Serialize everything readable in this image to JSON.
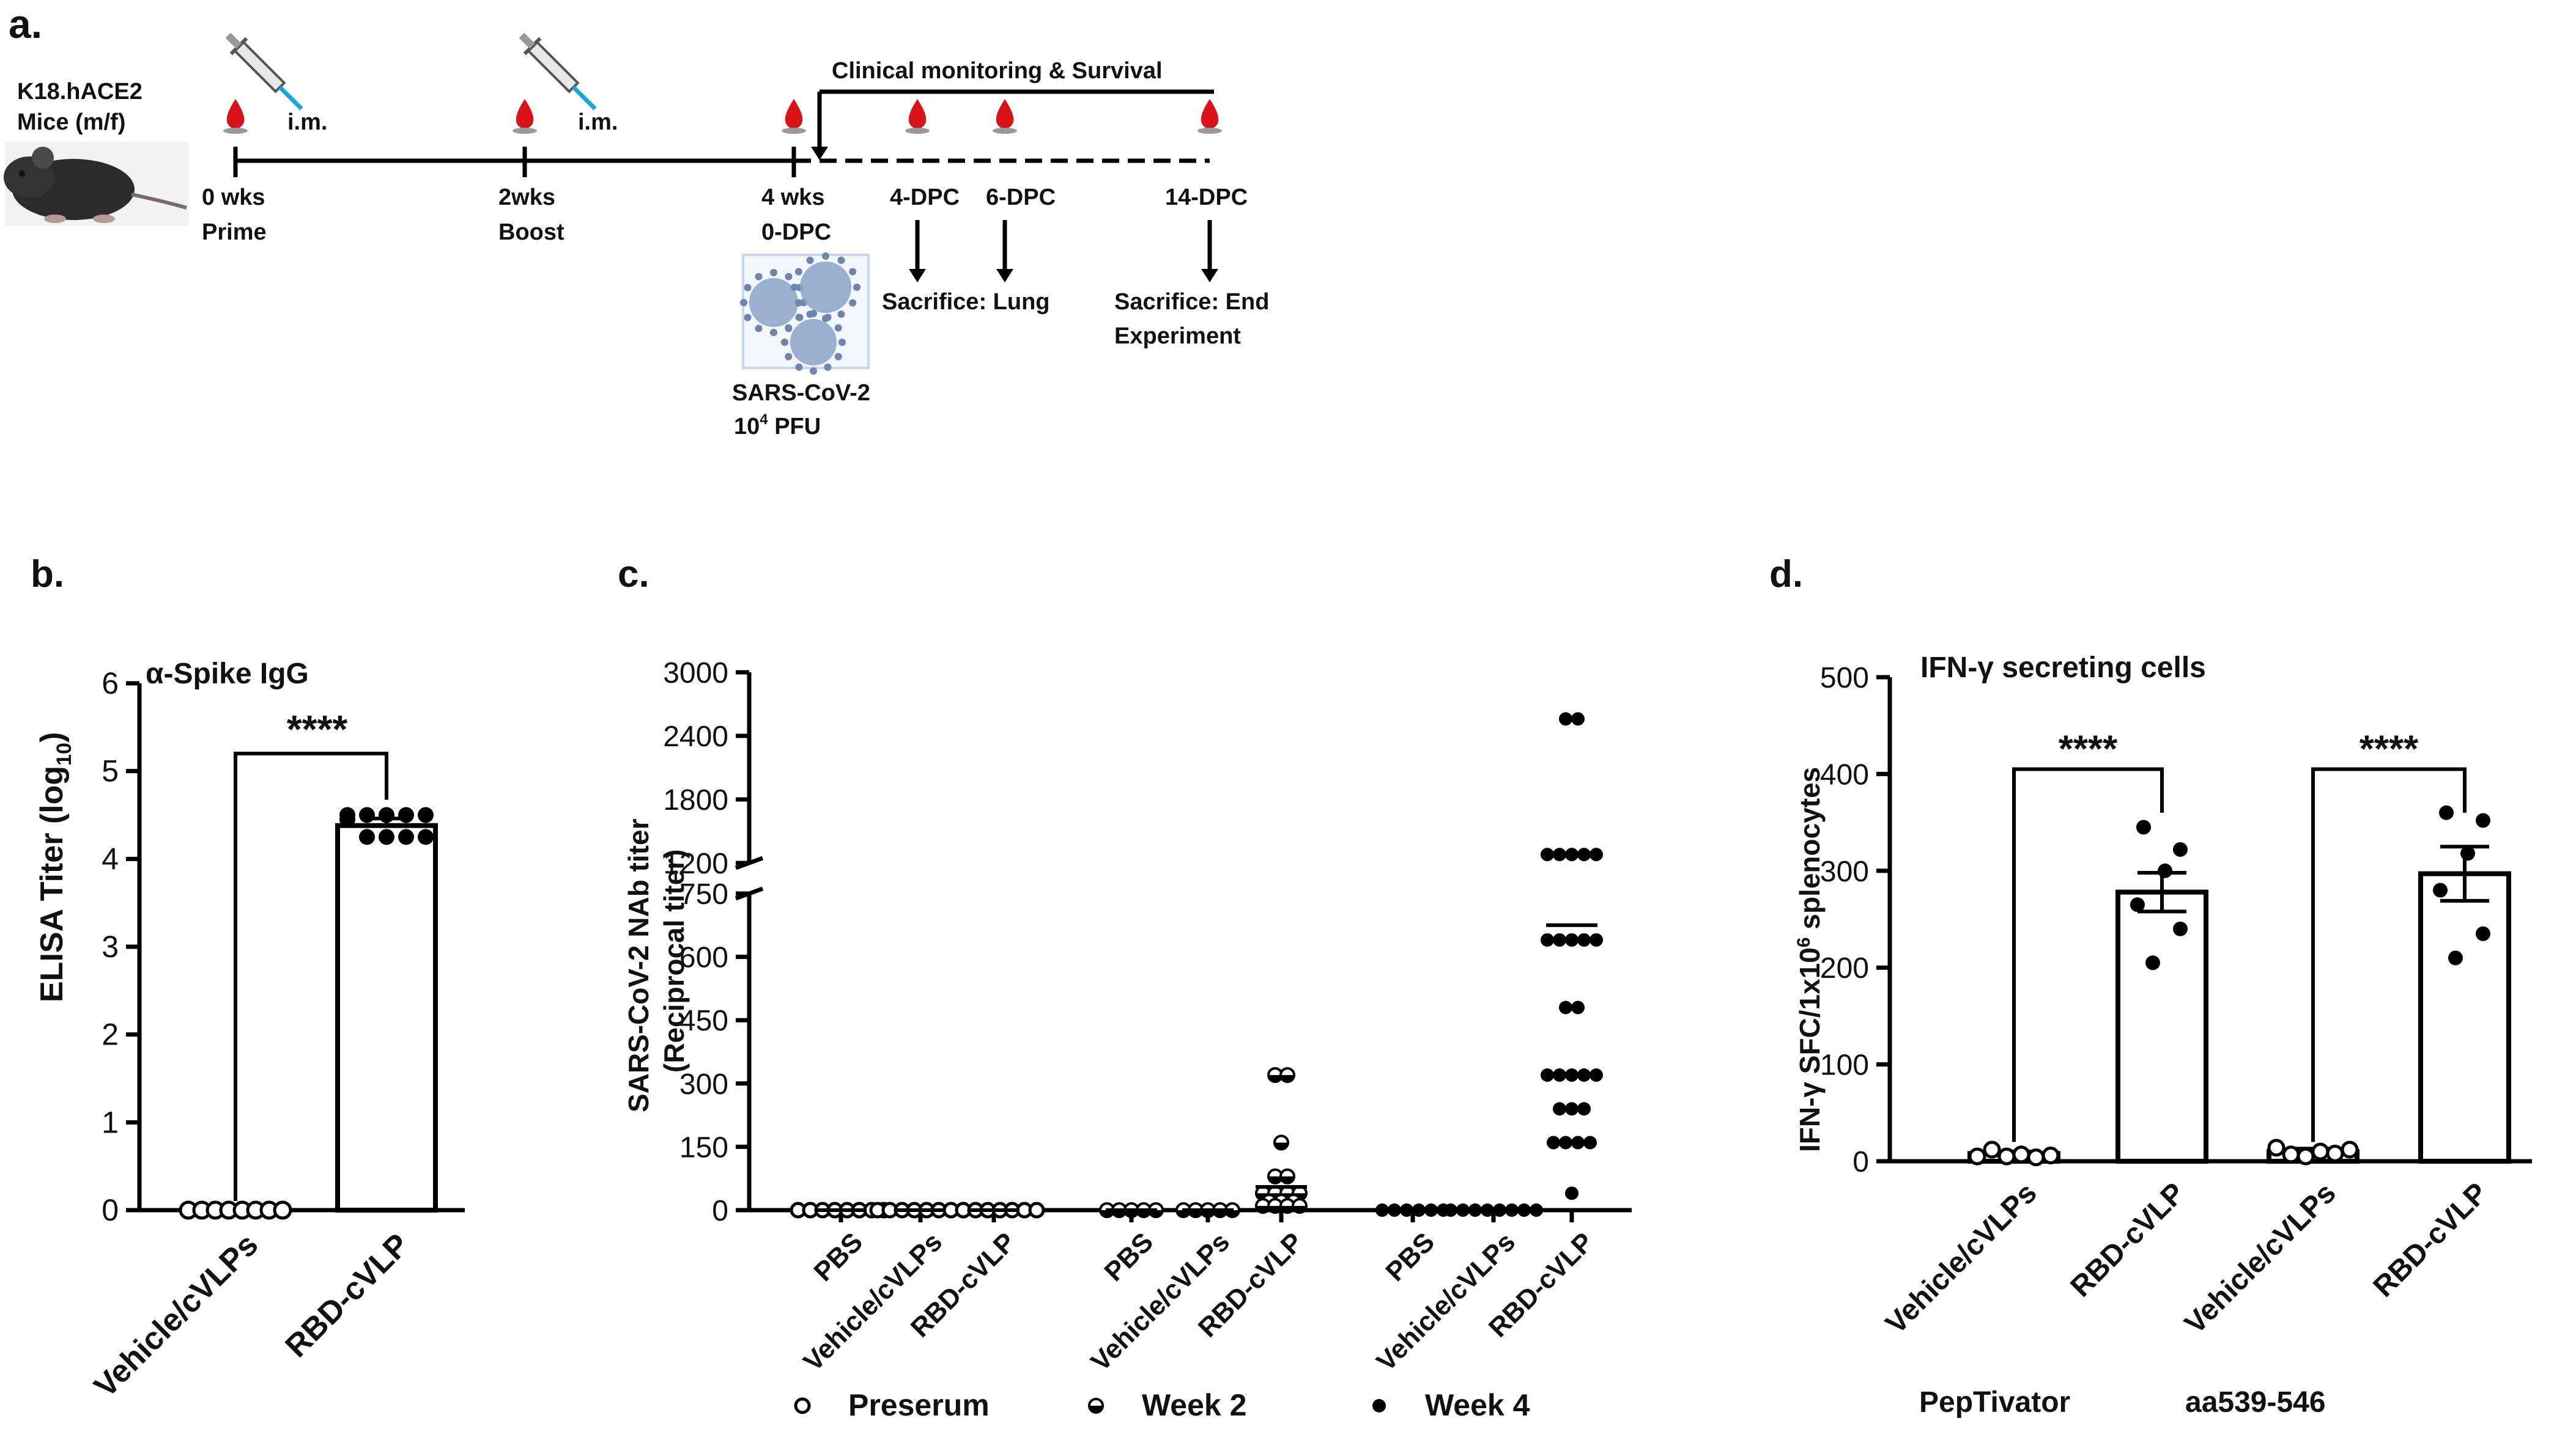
{
  "colors": {
    "ink": "#000000",
    "blood": "#d81418",
    "syringe_needle": "#1aa6d9",
    "virus": "#8aa3c8",
    "virus_box": "#c6d7ee"
  },
  "panel_a": {
    "label": "a.",
    "mouse_label": [
      "K18.hACE2",
      "Mice (m/f)"
    ],
    "route": "i.m.",
    "timepoints": [
      {
        "line1": "0 wks",
        "line2": "Prime"
      },
      {
        "line1": "2wks",
        "line2": "Boost"
      },
      {
        "line1": "4 wks",
        "line2": "0-DPC"
      },
      {
        "line1": "4-DPC",
        "line2": ""
      },
      {
        "line1": "6-DPC",
        "line2": ""
      },
      {
        "line1": "14-DPC",
        "line2": ""
      }
    ],
    "monitoring": "Clinical monitoring & Survival",
    "sacrifice_lung": "Sacrifice: Lung",
    "sacrifice_end": [
      "Sacrifice: End",
      "Experiment"
    ],
    "challenge": {
      "name": "SARS-CoV-2",
      "dose_coef": "10",
      "dose_exp": "4",
      "dose_unit": " PFU"
    },
    "icons": [
      "mouse-photo",
      "blood-drop-icon",
      "syringe-icon",
      "virus-icon"
    ]
  },
  "chart_data": [
    {
      "panel": "b.",
      "type": "bar",
      "title": "α-Spike IgG",
      "ylabel_main": "ELISA Titer (log",
      "ylabel_sub": "10",
      "ylabel_end": ")",
      "ylim": [
        0,
        6
      ],
      "yticks": [
        0,
        1,
        2,
        3,
        4,
        5,
        6
      ],
      "categories": [
        "Vehicle/cVLPs",
        "RBD-cVLP"
      ],
      "values": [
        0,
        4.38
      ],
      "sem": [
        0,
        0.08
      ],
      "points": [
        [
          0,
          0,
          0,
          0,
          0,
          0,
          0,
          0
        ],
        [
          4.5,
          4.5,
          4.5,
          4.5,
          4.5,
          4.45,
          4.25,
          4.25,
          4.25,
          4.25
        ]
      ],
      "point_fill": [
        "open",
        "filled"
      ],
      "significance": {
        "label": "****",
        "pair": [
          0,
          1
        ],
        "y": 5.2
      }
    },
    {
      "panel": "c.",
      "type": "scatter",
      "ylabel": [
        "SARS-CoV-2 NAb titer",
        "(Reciprocal titer)"
      ],
      "yaxis_segments": [
        {
          "range": [
            0,
            750
          ],
          "ticks": [
            0,
            150,
            300,
            450,
            600,
            750
          ]
        },
        {
          "range": [
            1200,
            3000
          ],
          "ticks": [
            1200,
            1800,
            2400,
            3000
          ]
        }
      ],
      "categories": [
        "PBS",
        "Vehicle/cVLPs",
        "RBD-cVLP",
        "PBS",
        "Vehicle/cVLPs",
        "RBD-cVLP",
        "PBS",
        "Vehicle/cVLPs",
        "RBD-cVLP"
      ],
      "series": [
        {
          "name": "Preserum",
          "marker": "open",
          "groups": [
            0,
            1,
            2
          ]
        },
        {
          "name": "Week 2",
          "marker": "half",
          "groups": [
            3,
            4,
            5
          ]
        },
        {
          "name": "Week 4",
          "marker": "filled",
          "groups": [
            6,
            7,
            8
          ]
        }
      ],
      "points": [
        [
          0,
          0,
          0,
          0,
          0,
          0,
          0,
          0
        ],
        [
          0,
          0,
          0,
          0,
          0,
          0,
          0,
          0
        ],
        [
          0,
          0,
          0,
          0,
          0,
          0,
          0,
          0
        ],
        [
          0,
          0,
          0,
          0,
          0
        ],
        [
          0,
          0,
          0,
          0,
          0
        ],
        [
          320,
          320,
          160,
          80,
          80,
          40,
          40,
          40,
          40,
          20,
          20,
          20,
          10,
          10,
          10,
          10
        ],
        [
          0,
          0,
          0,
          0,
          0,
          0
        ],
        [
          0,
          0,
          0,
          0,
          0,
          0,
          0,
          0
        ],
        [
          2560,
          2560,
          1280,
          1280,
          1280,
          1280,
          1280,
          640,
          640,
          640,
          640,
          640,
          480,
          480,
          320,
          320,
          320,
          320,
          320,
          240,
          240,
          240,
          160,
          160,
          160,
          160,
          40
        ]
      ],
      "means": [
        0,
        0,
        0,
        0,
        0,
        55,
        0,
        0,
        675
      ]
    },
    {
      "panel": "d.",
      "type": "bar",
      "title": "IFN-γ secreting cells",
      "ylabel_main": "IFN-γ SFC/1x10",
      "ylabel_sup": "6",
      "ylabel_end": " splenocytes",
      "ylim": [
        0,
        500
      ],
      "yticks": [
        0,
        100,
        200,
        300,
        400,
        500
      ],
      "categories": [
        "Vehicle/cVLPs",
        "RBD-cVLP",
        "Vehicle/cVLPs",
        "RBD-cVLP"
      ],
      "groups": [
        "PepTivator",
        "aa539-546"
      ],
      "values": [
        8,
        278,
        10,
        297
      ],
      "sem": [
        2,
        20,
        3,
        28
      ],
      "points": [
        [
          5,
          12,
          5,
          7,
          4,
          6
        ],
        [
          345,
          322,
          300,
          265,
          240,
          205
        ],
        [
          14,
          7,
          5,
          10,
          8,
          12
        ],
        [
          360,
          352,
          318,
          280,
          235,
          210
        ]
      ],
      "point_fill": [
        "open",
        "filled",
        "open",
        "filled"
      ],
      "significance": [
        {
          "label": "****",
          "pair": [
            0,
            1
          ],
          "y": 405
        },
        {
          "label": "****",
          "pair": [
            2,
            3
          ],
          "y": 405
        }
      ]
    }
  ]
}
